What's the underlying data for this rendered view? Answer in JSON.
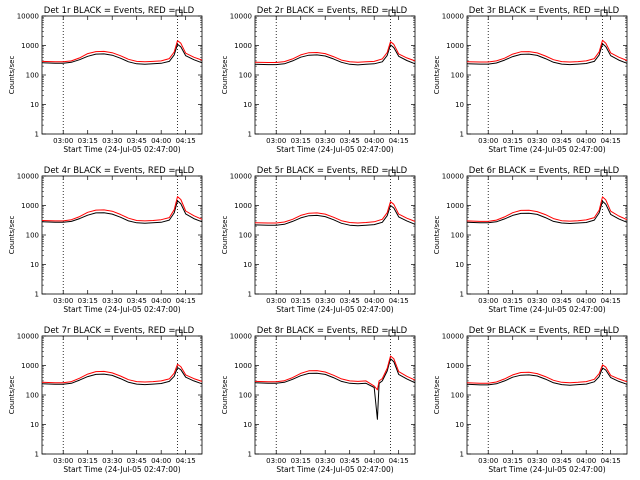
{
  "figure": {
    "colors": {
      "events": "#000000",
      "lld": "#ff0000",
      "axes": "#000000",
      "background": "#ffffff"
    }
  },
  "chart_data": [
    {
      "type": "line",
      "title": "Det 1r BLACK = Events, RED = LLD",
      "xlabel": "Start Time (24-Jul-05 02:47:00)",
      "ylabel": "Counts/sec",
      "yscale": "log",
      "ylim": [
        1,
        10000
      ],
      "xlim": [
        "02:47",
        "04:25"
      ],
      "x_ticks": [
        "03:00",
        "03:15",
        "03:30",
        "03:45",
        "04:00",
        "04:15"
      ],
      "y_ticks": [
        "1",
        "10",
        "100",
        "1000",
        "10000"
      ],
      "marker_lines": [
        "03:00",
        "04:10"
      ],
      "x": [
        "02:47",
        "02:55",
        "03:00",
        "03:05",
        "03:10",
        "03:15",
        "03:20",
        "03:25",
        "03:30",
        "03:35",
        "03:40",
        "03:45",
        "03:50",
        "03:55",
        "04:00",
        "04:05",
        "04:08",
        "04:10",
        "04:12",
        "04:15",
        "04:20",
        "04:25"
      ],
      "series": [
        {
          "name": "Events",
          "values": [
            260,
            250,
            250,
            270,
            330,
            430,
            510,
            520,
            470,
            370,
            280,
            240,
            230,
            240,
            250,
            290,
            480,
            1100,
            900,
            450,
            330,
            260
          ]
        },
        {
          "name": "LLD",
          "values": [
            290,
            280,
            280,
            300,
            380,
            530,
            620,
            630,
            570,
            450,
            340,
            290,
            280,
            290,
            300,
            360,
            600,
            1450,
            1200,
            550,
            400,
            320
          ]
        }
      ]
    },
    {
      "type": "line",
      "title": "Det 2r BLACK = Events, RED = LLD",
      "xlabel": "Start Time (24-Jul-05 02:47:00)",
      "ylabel": "Counts/sec",
      "yscale": "log",
      "ylim": [
        1,
        10000
      ],
      "xlim": [
        "02:47",
        "04:25"
      ],
      "x_ticks": [
        "03:00",
        "03:15",
        "03:30",
        "03:45",
        "04:00",
        "04:15"
      ],
      "y_ticks": [
        "1",
        "10",
        "100",
        "1000",
        "10000"
      ],
      "marker_lines": [
        "03:00",
        "04:10"
      ],
      "x": [
        "02:47",
        "02:55",
        "03:00",
        "03:05",
        "03:10",
        "03:15",
        "03:20",
        "03:25",
        "03:30",
        "03:35",
        "03:40",
        "03:45",
        "03:50",
        "03:55",
        "04:00",
        "04:05",
        "04:08",
        "04:10",
        "04:12",
        "04:15",
        "04:20",
        "04:25"
      ],
      "series": [
        {
          "name": "Events",
          "values": [
            230,
            225,
            225,
            240,
            300,
            400,
            470,
            480,
            440,
            350,
            270,
            230,
            220,
            230,
            240,
            280,
            460,
            1050,
            850,
            430,
            310,
            240
          ]
        },
        {
          "name": "LLD",
          "values": [
            270,
            265,
            265,
            285,
            350,
            480,
            570,
            580,
            530,
            420,
            320,
            280,
            270,
            280,
            290,
            350,
            580,
            1350,
            1100,
            520,
            380,
            300
          ]
        }
      ]
    },
    {
      "type": "line",
      "title": "Det 3r BLACK = Events, RED = LLD",
      "xlabel": "Start Time (24-Jul-05 02:47:00)",
      "ylabel": "Counts/sec",
      "yscale": "log",
      "ylim": [
        1,
        10000
      ],
      "xlim": [
        "02:47",
        "04:25"
      ],
      "x_ticks": [
        "03:00",
        "03:15",
        "03:30",
        "03:45",
        "04:00",
        "04:15"
      ],
      "y_ticks": [
        "1",
        "10",
        "100",
        "1000",
        "10000"
      ],
      "marker_lines": [
        "03:00",
        "04:10"
      ],
      "x": [
        "02:47",
        "02:55",
        "03:00",
        "03:05",
        "03:10",
        "03:15",
        "03:20",
        "03:25",
        "03:30",
        "03:35",
        "03:40",
        "03:45",
        "03:50",
        "03:55",
        "04:00",
        "04:05",
        "04:08",
        "04:10",
        "04:12",
        "04:15",
        "04:20",
        "04:25"
      ],
      "series": [
        {
          "name": "Events",
          "values": [
            240,
            235,
            235,
            255,
            320,
            420,
            500,
            510,
            460,
            360,
            270,
            235,
            225,
            235,
            245,
            290,
            480,
            1150,
            920,
            450,
            320,
            250
          ]
        },
        {
          "name": "LLD",
          "values": [
            280,
            275,
            275,
            300,
            370,
            510,
            610,
            620,
            560,
            440,
            330,
            285,
            275,
            285,
            300,
            360,
            610,
            1500,
            1200,
            560,
            400,
            310
          ]
        }
      ]
    },
    {
      "type": "line",
      "title": "Det 4r BLACK = Events, RED = LLD",
      "xlabel": "Start Time (24-Jul-05 02:47:00)",
      "ylabel": "Counts/sec",
      "yscale": "log",
      "ylim": [
        1,
        10000
      ],
      "xlim": [
        "02:47",
        "04:25"
      ],
      "x_ticks": [
        "03:00",
        "03:15",
        "03:30",
        "03:45",
        "04:00",
        "04:15"
      ],
      "y_ticks": [
        "1",
        "10",
        "100",
        "1000",
        "10000"
      ],
      "marker_lines": [
        "03:00",
        "04:10"
      ],
      "x": [
        "02:47",
        "02:55",
        "03:00",
        "03:05",
        "03:10",
        "03:15",
        "03:20",
        "03:25",
        "03:30",
        "03:35",
        "03:40",
        "03:45",
        "03:50",
        "03:55",
        "04:00",
        "04:05",
        "04:08",
        "04:10",
        "04:12",
        "04:15",
        "04:20",
        "04:25"
      ],
      "series": [
        {
          "name": "Events",
          "values": [
            280,
            270,
            270,
            290,
            360,
            470,
            560,
            570,
            510,
            400,
            300,
            260,
            250,
            260,
            270,
            320,
            560,
            1450,
            1150,
            520,
            360,
            280
          ]
        },
        {
          "name": "LLD",
          "values": [
            310,
            300,
            300,
            330,
            420,
            590,
            700,
            710,
            640,
            500,
            370,
            310,
            300,
            310,
            330,
            390,
            720,
            2000,
            1600,
            650,
            450,
            340
          ]
        }
      ]
    },
    {
      "type": "line",
      "title": "Det 5r BLACK = Events, RED = LLD",
      "xlabel": "Start Time (24-Jul-05 02:47:00)",
      "ylabel": "Counts/sec",
      "yscale": "log",
      "ylim": [
        1,
        10000
      ],
      "xlim": [
        "02:47",
        "04:25"
      ],
      "x_ticks": [
        "03:00",
        "03:15",
        "03:30",
        "03:45",
        "04:00",
        "04:15"
      ],
      "y_ticks": [
        "1",
        "10",
        "100",
        "1000",
        "10000"
      ],
      "marker_lines": [
        "03:00",
        "04:10"
      ],
      "x": [
        "02:47",
        "02:55",
        "03:00",
        "03:05",
        "03:10",
        "03:15",
        "03:20",
        "03:25",
        "03:30",
        "03:35",
        "03:40",
        "03:45",
        "03:50",
        "03:55",
        "04:00",
        "04:05",
        "04:08",
        "04:10",
        "04:12",
        "04:15",
        "04:20",
        "04:25"
      ],
      "series": [
        {
          "name": "Events",
          "values": [
            220,
            215,
            215,
            230,
            290,
            380,
            450,
            460,
            420,
            330,
            250,
            215,
            205,
            215,
            225,
            270,
            450,
            1000,
            820,
            410,
            300,
            230
          ]
        },
        {
          "name": "LLD",
          "values": [
            260,
            255,
            255,
            275,
            340,
            460,
            550,
            560,
            510,
            400,
            305,
            265,
            255,
            265,
            280,
            340,
            570,
            1350,
            1100,
            510,
            370,
            290
          ]
        }
      ]
    },
    {
      "type": "line",
      "title": "Det 6r BLACK = Events, RED = LLD",
      "xlabel": "Start Time (24-Jul-05 02:47:00)",
      "ylabel": "Counts/sec",
      "yscale": "log",
      "ylim": [
        1,
        10000
      ],
      "xlim": [
        "02:47",
        "04:25"
      ],
      "x_ticks": [
        "03:00",
        "03:15",
        "03:30",
        "03:45",
        "04:00",
        "04:15"
      ],
      "y_ticks": [
        "1",
        "10",
        "100",
        "1000",
        "10000"
      ],
      "marker_lines": [
        "03:00",
        "04:10"
      ],
      "x": [
        "02:47",
        "02:55",
        "03:00",
        "03:05",
        "03:10",
        "03:15",
        "03:20",
        "03:25",
        "03:30",
        "03:35",
        "03:40",
        "03:45",
        "03:50",
        "03:55",
        "04:00",
        "04:05",
        "04:08",
        "04:10",
        "04:12",
        "04:15",
        "04:20",
        "04:25"
      ],
      "series": [
        {
          "name": "Events",
          "values": [
            270,
            260,
            260,
            280,
            350,
            460,
            540,
            550,
            500,
            390,
            290,
            255,
            245,
            255,
            265,
            320,
            560,
            1400,
            1100,
            500,
            350,
            270
          ]
        },
        {
          "name": "LLD",
          "values": [
            300,
            290,
            290,
            320,
            410,
            570,
            680,
            690,
            620,
            490,
            360,
            305,
            295,
            305,
            325,
            390,
            700,
            1950,
            1550,
            640,
            440,
            330
          ]
        }
      ]
    },
    {
      "type": "line",
      "title": "Det 7r BLACK = Events, RED = LLD",
      "xlabel": "Start Time (24-Jul-05 02:47:00)",
      "ylabel": "Counts/sec",
      "yscale": "log",
      "ylim": [
        1,
        10000
      ],
      "xlim": [
        "02:47",
        "04:25"
      ],
      "x_ticks": [
        "03:00",
        "03:15",
        "03:30",
        "03:45",
        "04:00",
        "04:15"
      ],
      "y_ticks": [
        "1",
        "10",
        "100",
        "1000",
        "10000"
      ],
      "marker_lines": [
        "03:00",
        "04:10"
      ],
      "x": [
        "02:47",
        "02:55",
        "03:00",
        "03:05",
        "03:10",
        "03:15",
        "03:20",
        "03:25",
        "03:30",
        "03:35",
        "03:40",
        "03:45",
        "03:50",
        "03:55",
        "04:00",
        "04:05",
        "04:08",
        "04:10",
        "04:12",
        "04:15",
        "04:20",
        "04:25"
      ],
      "series": [
        {
          "name": "Events",
          "values": [
            240,
            230,
            230,
            250,
            320,
            420,
            500,
            510,
            460,
            360,
            270,
            235,
            225,
            235,
            245,
            290,
            430,
            850,
            720,
            400,
            300,
            240
          ]
        },
        {
          "name": "LLD",
          "values": [
            270,
            260,
            260,
            285,
            370,
            510,
            620,
            630,
            560,
            440,
            330,
            285,
            275,
            285,
            300,
            350,
            550,
            1100,
            920,
            480,
            360,
            290
          ]
        }
      ]
    },
    {
      "type": "line",
      "title": "Det 8r BLACK = Events, RED = LLD",
      "xlabel": "Start Time (24-Jul-05 02:47:00)",
      "ylabel": "Counts/sec",
      "yscale": "log",
      "ylim": [
        1,
        10000
      ],
      "xlim": [
        "02:47",
        "04:25"
      ],
      "x_ticks": [
        "03:00",
        "03:15",
        "03:30",
        "03:45",
        "04:00",
        "04:15"
      ],
      "y_ticks": [
        "1",
        "10",
        "100",
        "1000",
        "10000"
      ],
      "marker_lines": [
        "03:00",
        "04:10"
      ],
      "x": [
        "02:47",
        "02:55",
        "03:00",
        "03:05",
        "03:10",
        "03:15",
        "03:20",
        "03:25",
        "03:30",
        "03:35",
        "03:40",
        "03:45",
        "03:50",
        "03:55",
        "04:00",
        "04:02",
        "04:03",
        "04:05",
        "04:08",
        "04:10",
        "04:12",
        "04:15",
        "04:20",
        "04:25"
      ],
      "series": [
        {
          "name": "Events",
          "values": [
            260,
            250,
            250,
            270,
            340,
            450,
            540,
            550,
            500,
            390,
            290,
            250,
            240,
            250,
            180,
            15,
            250,
            300,
            650,
            1700,
            1350,
            500,
            350,
            260
          ]
        },
        {
          "name": "LLD",
          "values": [
            290,
            280,
            280,
            305,
            390,
            540,
            660,
            670,
            600,
            470,
            350,
            300,
            290,
            300,
            200,
            150,
            300,
            360,
            800,
            2100,
            1700,
            620,
            430,
            320
          ]
        }
      ]
    },
    {
      "type": "line",
      "title": "Det 9r BLACK = Events, RED = LLD",
      "xlabel": "Start Time (24-Jul-05 02:47:00)",
      "ylabel": "Counts/sec",
      "yscale": "log",
      "ylim": [
        1,
        10000
      ],
      "xlim": [
        "02:47",
        "04:25"
      ],
      "x_ticks": [
        "03:00",
        "03:15",
        "03:30",
        "03:45",
        "04:00",
        "04:15"
      ],
      "y_ticks": [
        "1",
        "10",
        "100",
        "1000",
        "10000"
      ],
      "marker_lines": [
        "03:00",
        "04:10"
      ],
      "x": [
        "02:47",
        "02:55",
        "03:00",
        "03:05",
        "03:10",
        "03:15",
        "03:20",
        "03:25",
        "03:30",
        "03:35",
        "03:40",
        "03:45",
        "03:50",
        "03:55",
        "04:00",
        "04:05",
        "04:08",
        "04:10",
        "04:12",
        "04:15",
        "04:20",
        "04:25"
      ],
      "series": [
        {
          "name": "Events",
          "values": [
            230,
            220,
            220,
            240,
            300,
            400,
            470,
            480,
            440,
            345,
            260,
            225,
            215,
            225,
            235,
            280,
            420,
            820,
            700,
            390,
            290,
            230
          ]
        },
        {
          "name": "LLD",
          "values": [
            260,
            250,
            250,
            275,
            350,
            480,
            580,
            590,
            530,
            420,
            315,
            270,
            260,
            270,
            285,
            340,
            530,
            1050,
            880,
            460,
            350,
            280
          ]
        }
      ]
    }
  ]
}
